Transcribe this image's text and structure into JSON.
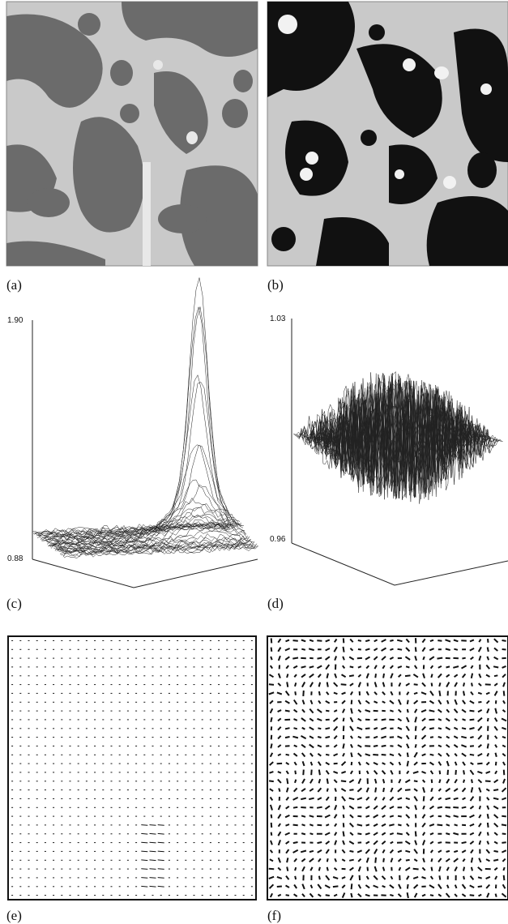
{
  "panels": [
    {
      "label": "(a)"
    },
    {
      "label": "(b)"
    },
    {
      "label": "(c)",
      "axis_top": "1.90",
      "axis_bottom": "0.88"
    },
    {
      "label": "(d)",
      "axis_top": "1.03",
      "axis_bottom": "0.96"
    },
    {
      "label": "(e)"
    },
    {
      "label": "(f)"
    }
  ]
}
